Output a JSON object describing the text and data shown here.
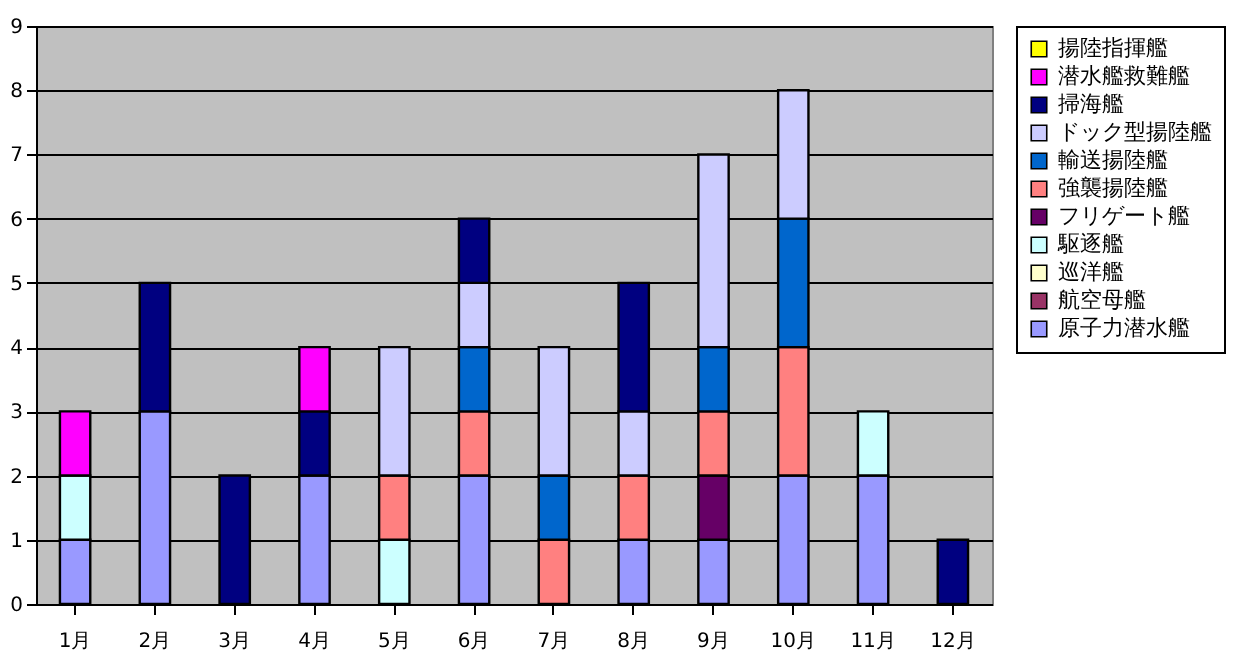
{
  "chart_data": {
    "type": "bar",
    "stacked": true,
    "categories": [
      "1月",
      "2月",
      "3月",
      "4月",
      "5月",
      "6月",
      "7月",
      "8月",
      "9月",
      "10月",
      "11月",
      "12月"
    ],
    "series": [
      {
        "name": "原子力潜水艦",
        "color": "#9999ff",
        "values": [
          1,
          3,
          0,
          2,
          0,
          2,
          0,
          1,
          1,
          2,
          2,
          0
        ]
      },
      {
        "name": "航空母艦",
        "color": "#993366",
        "values": [
          0,
          0,
          0,
          0,
          0,
          0,
          0,
          0,
          0,
          0,
          0,
          0
        ]
      },
      {
        "name": "巡洋艦",
        "color": "#ffffcc",
        "values": [
          0,
          0,
          0,
          0,
          0,
          0,
          0,
          0,
          0,
          0,
          0,
          0
        ]
      },
      {
        "name": "駆逐艦",
        "color": "#ccffff",
        "values": [
          1,
          0,
          0,
          0,
          1,
          0,
          0,
          0,
          0,
          0,
          1,
          0
        ]
      },
      {
        "name": "フリゲート艦",
        "color": "#660066",
        "values": [
          0,
          0,
          0,
          0,
          0,
          0,
          0,
          0,
          1,
          0,
          0,
          0
        ]
      },
      {
        "name": "強襲揚陸艦",
        "color": "#ff8080",
        "values": [
          0,
          0,
          0,
          0,
          1,
          1,
          1,
          1,
          1,
          2,
          0,
          0
        ]
      },
      {
        "name": "輸送揚陸艦",
        "color": "#0066cc",
        "values": [
          0,
          0,
          0,
          0,
          0,
          1,
          1,
          0,
          1,
          2,
          0,
          0
        ]
      },
      {
        "name": "ドック型揚陸艦",
        "color": "#ccccff",
        "values": [
          0,
          0,
          0,
          0,
          2,
          1,
          2,
          1,
          3,
          2,
          0,
          0
        ]
      },
      {
        "name": "掃海艦",
        "color": "#000080",
        "values": [
          0,
          2,
          2,
          1,
          0,
          1,
          0,
          2,
          0,
          0,
          0,
          1
        ]
      },
      {
        "name": "潜水艦救難艦",
        "color": "#ff00ff",
        "values": [
          1,
          0,
          0,
          1,
          0,
          0,
          0,
          0,
          0,
          0,
          0,
          0
        ]
      },
      {
        "name": "揚陸指揮艦",
        "color": "#ffff00",
        "values": [
          0,
          0,
          0,
          0,
          0,
          0,
          0,
          0,
          0,
          0,
          0,
          0
        ]
      }
    ],
    "ylim": [
      0,
      9
    ],
    "yticks": [
      0,
      1,
      2,
      3,
      4,
      5,
      6,
      7,
      8,
      9
    ],
    "grid": "y",
    "legend": "right"
  }
}
